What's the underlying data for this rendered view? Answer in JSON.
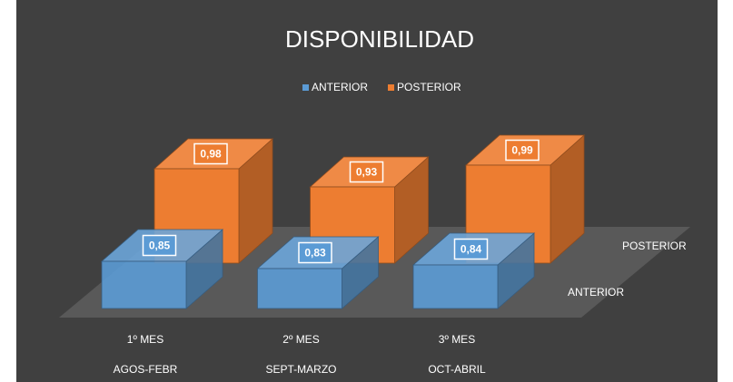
{
  "chart_data": {
    "type": "bar3d",
    "title": "DISPONIBILIDAD",
    "categories": [
      "1º MES",
      "2º MES",
      "3º MES"
    ],
    "subcategories": [
      "AGOS-FEBR",
      "SEPT-MARZO",
      "OCT-ABRIL"
    ],
    "series": [
      {
        "name": "ANTERIOR",
        "color": "#5b9bd5",
        "values": [
          0.85,
          0.83,
          0.84
        ],
        "value_labels": [
          "0,85",
          "0,83",
          "0,84"
        ]
      },
      {
        "name": "POSTERIOR",
        "color": "#ed7d31",
        "values": [
          0.98,
          0.93,
          0.99
        ],
        "value_labels": [
          "0,98",
          "0,93",
          "0,99"
        ]
      }
    ],
    "ylim": [
      0.72,
      1.0
    ],
    "legend": "top"
  }
}
